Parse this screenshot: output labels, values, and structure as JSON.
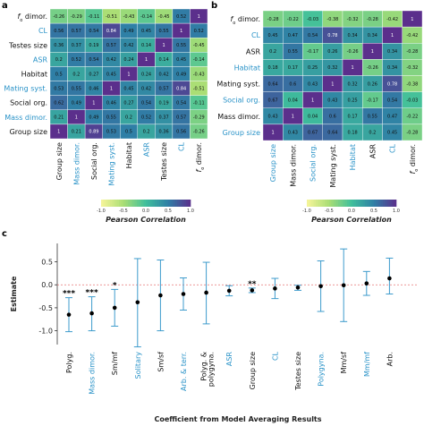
{
  "colors": {
    "blue_label": "#2a93c8",
    "black_label": "#111111",
    "errorbar": "#3d9bcc",
    "zero_line": "#e57373",
    "point": "#000000"
  },
  "colorscale": {
    "stops": [
      [
        -1.0,
        "#f7f49a"
      ],
      [
        -0.5,
        "#a9de74"
      ],
      [
        0.0,
        "#3fbf9b"
      ],
      [
        0.5,
        "#2f7fa6"
      ],
      [
        1.0,
        "#5b2f8c"
      ]
    ]
  },
  "chart_data": [
    {
      "panel": "a",
      "type": "heatmap",
      "rows": [
        {
          "label": "f",
          "label_sub": "o",
          "label_rest": " dimor.",
          "color": "black"
        },
        {
          "label": "CL",
          "color": "blue"
        },
        {
          "label": "Testes size",
          "color": "black"
        },
        {
          "label": "ASR",
          "color": "blue"
        },
        {
          "label": "Habitat",
          "color": "black"
        },
        {
          "label": "Mating syst.",
          "color": "blue"
        },
        {
          "label": "Social org.",
          "color": "black"
        },
        {
          "label": "Mass dimor.",
          "color": "blue"
        },
        {
          "label": "Group size",
          "color": "black"
        }
      ],
      "columns": [
        {
          "label": "Group size",
          "color": "black"
        },
        {
          "label": "Mass dimor.",
          "color": "blue"
        },
        {
          "label": "Social org.",
          "color": "black"
        },
        {
          "label": "Mating syst.",
          "color": "blue"
        },
        {
          "label": "Habitat",
          "color": "black"
        },
        {
          "label": "ASR",
          "color": "blue"
        },
        {
          "label": "Testes size",
          "color": "black"
        },
        {
          "label": "CL",
          "color": "blue"
        },
        {
          "label": "f",
          "label_sub": "o",
          "label_rest": " dimor.",
          "color": "black"
        }
      ],
      "values": [
        [
          -0.26,
          -0.29,
          -0.11,
          -0.51,
          -0.43,
          -0.14,
          -0.45,
          0.52,
          1
        ],
        [
          0.56,
          0.57,
          0.54,
          0.84,
          0.49,
          0.45,
          0.55,
          1,
          0.52
        ],
        [
          0.36,
          0.37,
          0.19,
          0.57,
          0.42,
          0.14,
          1,
          0.55,
          -0.45
        ],
        [
          0.2,
          0.52,
          0.54,
          0.42,
          0.24,
          1,
          0.14,
          0.45,
          -0.14
        ],
        [
          0.5,
          0.2,
          0.27,
          0.45,
          1,
          0.24,
          0.42,
          0.49,
          -0.43
        ],
        [
          0.53,
          0.55,
          0.46,
          1,
          0.45,
          0.42,
          0.57,
          0.84,
          -0.51
        ],
        [
          0.62,
          0.49,
          1,
          0.46,
          0.27,
          0.54,
          0.19,
          0.54,
          -0.11
        ],
        [
          0.21,
          1,
          0.49,
          0.55,
          0.2,
          0.52,
          0.37,
          0.57,
          -0.29
        ],
        [
          1,
          0.21,
          0.89,
          0.53,
          0.5,
          0.2,
          0.36,
          0.56,
          -0.26
        ]
      ],
      "colorbar": {
        "title": "Pearson Correlation",
        "ticks": [
          "-1.0",
          "-0.5",
          "0.0",
          "0.5",
          "1.0"
        ],
        "range": [
          -1,
          1
        ]
      }
    },
    {
      "panel": "b",
      "type": "heatmap",
      "rows": [
        {
          "label": "f",
          "label_sub": "o",
          "label_rest": " dimor.",
          "color": "black"
        },
        {
          "label": "CL",
          "color": "blue"
        },
        {
          "label": "ASR",
          "color": "black"
        },
        {
          "label": "Habitat",
          "color": "blue"
        },
        {
          "label": "Mating syst.",
          "color": "black"
        },
        {
          "label": "Social org.",
          "color": "blue"
        },
        {
          "label": "Mass dimor.",
          "color": "black"
        },
        {
          "label": "Group size",
          "color": "blue"
        }
      ],
      "columns": [
        {
          "label": "Group size",
          "color": "blue"
        },
        {
          "label": "Mass dimor.",
          "color": "black"
        },
        {
          "label": "Social org.",
          "color": "blue"
        },
        {
          "label": "Mating syst.",
          "color": "black"
        },
        {
          "label": "Habitat",
          "color": "blue"
        },
        {
          "label": "ASR",
          "color": "black"
        },
        {
          "label": "CL",
          "color": "blue"
        },
        {
          "label": "f",
          "label_sub": "o",
          "label_rest": " dimor.",
          "color": "black"
        }
      ],
      "values": [
        [
          -0.28,
          -0.22,
          -0.03,
          -0.38,
          -0.32,
          -0.28,
          -0.42,
          1
        ],
        [
          0.45,
          0.47,
          0.54,
          0.78,
          0.34,
          0.34,
          1,
          -0.42
        ],
        [
          0.2,
          0.55,
          -0.17,
          0.26,
          -0.26,
          1,
          0.34,
          -0.28
        ],
        [
          0.18,
          0.17,
          0.25,
          0.32,
          1,
          -0.26,
          0.34,
          -0.32
        ],
        [
          0.64,
          0.6,
          0.43,
          1,
          0.32,
          0.26,
          0.78,
          -0.38
        ],
        [
          0.67,
          0.04,
          1,
          0.43,
          0.25,
          -0.17,
          0.54,
          -0.03
        ],
        [
          0.43,
          1,
          0.04,
          0.6,
          0.17,
          0.55,
          0.47,
          -0.22
        ],
        [
          1,
          0.43,
          0.67,
          0.64,
          0.18,
          0.2,
          0.45,
          -0.28
        ]
      ],
      "colorbar": {
        "title": "Pearson Correlation",
        "ticks": [
          "-1.0",
          "-0.5",
          "0.0",
          "0.5",
          "1.0"
        ],
        "range": [
          -1,
          1
        ]
      }
    },
    {
      "panel": "c",
      "type": "scatter",
      "xlabel": "Coefficient from Model Averaging Results",
      "ylabel": "Estimate",
      "ylim": [
        -1.3,
        0.9
      ],
      "yticks": [
        "0.5",
        "0.0",
        "-0.5",
        "-1.0"
      ],
      "ytick_values": [
        0.5,
        0.0,
        -0.5,
        -1.0
      ],
      "zero_line": true,
      "points": [
        {
          "label": "Polyg.",
          "color": "black",
          "estimate": -0.65,
          "low": -1.02,
          "high": -0.28,
          "sig": "***"
        },
        {
          "label": "Mass dimor.",
          "color": "blue",
          "estimate": -0.62,
          "low": -1.0,
          "high": -0.26,
          "sig": "***"
        },
        {
          "label": "Sm/mf",
          "color": "black",
          "estimate": -0.5,
          "low": -0.9,
          "high": -0.1,
          "sig": "*"
        },
        {
          "label": "Solitary",
          "color": "blue",
          "estimate": -0.38,
          "low": -1.35,
          "high": 0.57,
          "sig": ""
        },
        {
          "label": "Sm/sf",
          "color": "black",
          "estimate": -0.23,
          "low": -1.0,
          "high": 0.54,
          "sig": ""
        },
        {
          "label": "Arb. & terr.",
          "color": "blue",
          "estimate": -0.2,
          "low": -0.55,
          "high": 0.15,
          "sig": ""
        },
        {
          "label": "Polyg. & polygyna.",
          "color": "black",
          "estimate": -0.17,
          "low": -0.85,
          "high": 0.49,
          "sig": ""
        },
        {
          "label": "ASR",
          "color": "blue",
          "estimate": -0.13,
          "low": -0.24,
          "high": -0.02,
          "sig": ""
        },
        {
          "label": "Group size",
          "color": "black",
          "estimate": -0.12,
          "low": -0.17,
          "high": -0.07,
          "sig": "**"
        },
        {
          "label": "CL",
          "color": "blue",
          "estimate": -0.08,
          "low": -0.3,
          "high": 0.14,
          "sig": ""
        },
        {
          "label": "Testes size",
          "color": "black",
          "estimate": -0.06,
          "low": -0.12,
          "high": -0.01,
          "sig": ""
        },
        {
          "label": "Polygyna.",
          "color": "blue",
          "estimate": -0.03,
          "low": -0.58,
          "high": 0.52,
          "sig": ""
        },
        {
          "label": "Mm/sf",
          "color": "black",
          "estimate": -0.01,
          "low": -0.8,
          "high": 0.78,
          "sig": ""
        },
        {
          "label": "Mm/mf",
          "color": "blue",
          "estimate": 0.03,
          "low": -0.23,
          "high": 0.29,
          "sig": ""
        },
        {
          "label": "Arb.",
          "color": "black",
          "estimate": 0.14,
          "low": -0.2,
          "high": 0.58,
          "sig": ""
        }
      ]
    }
  ],
  "panel_letters": {
    "a": "a",
    "b": "b",
    "c": "c"
  }
}
